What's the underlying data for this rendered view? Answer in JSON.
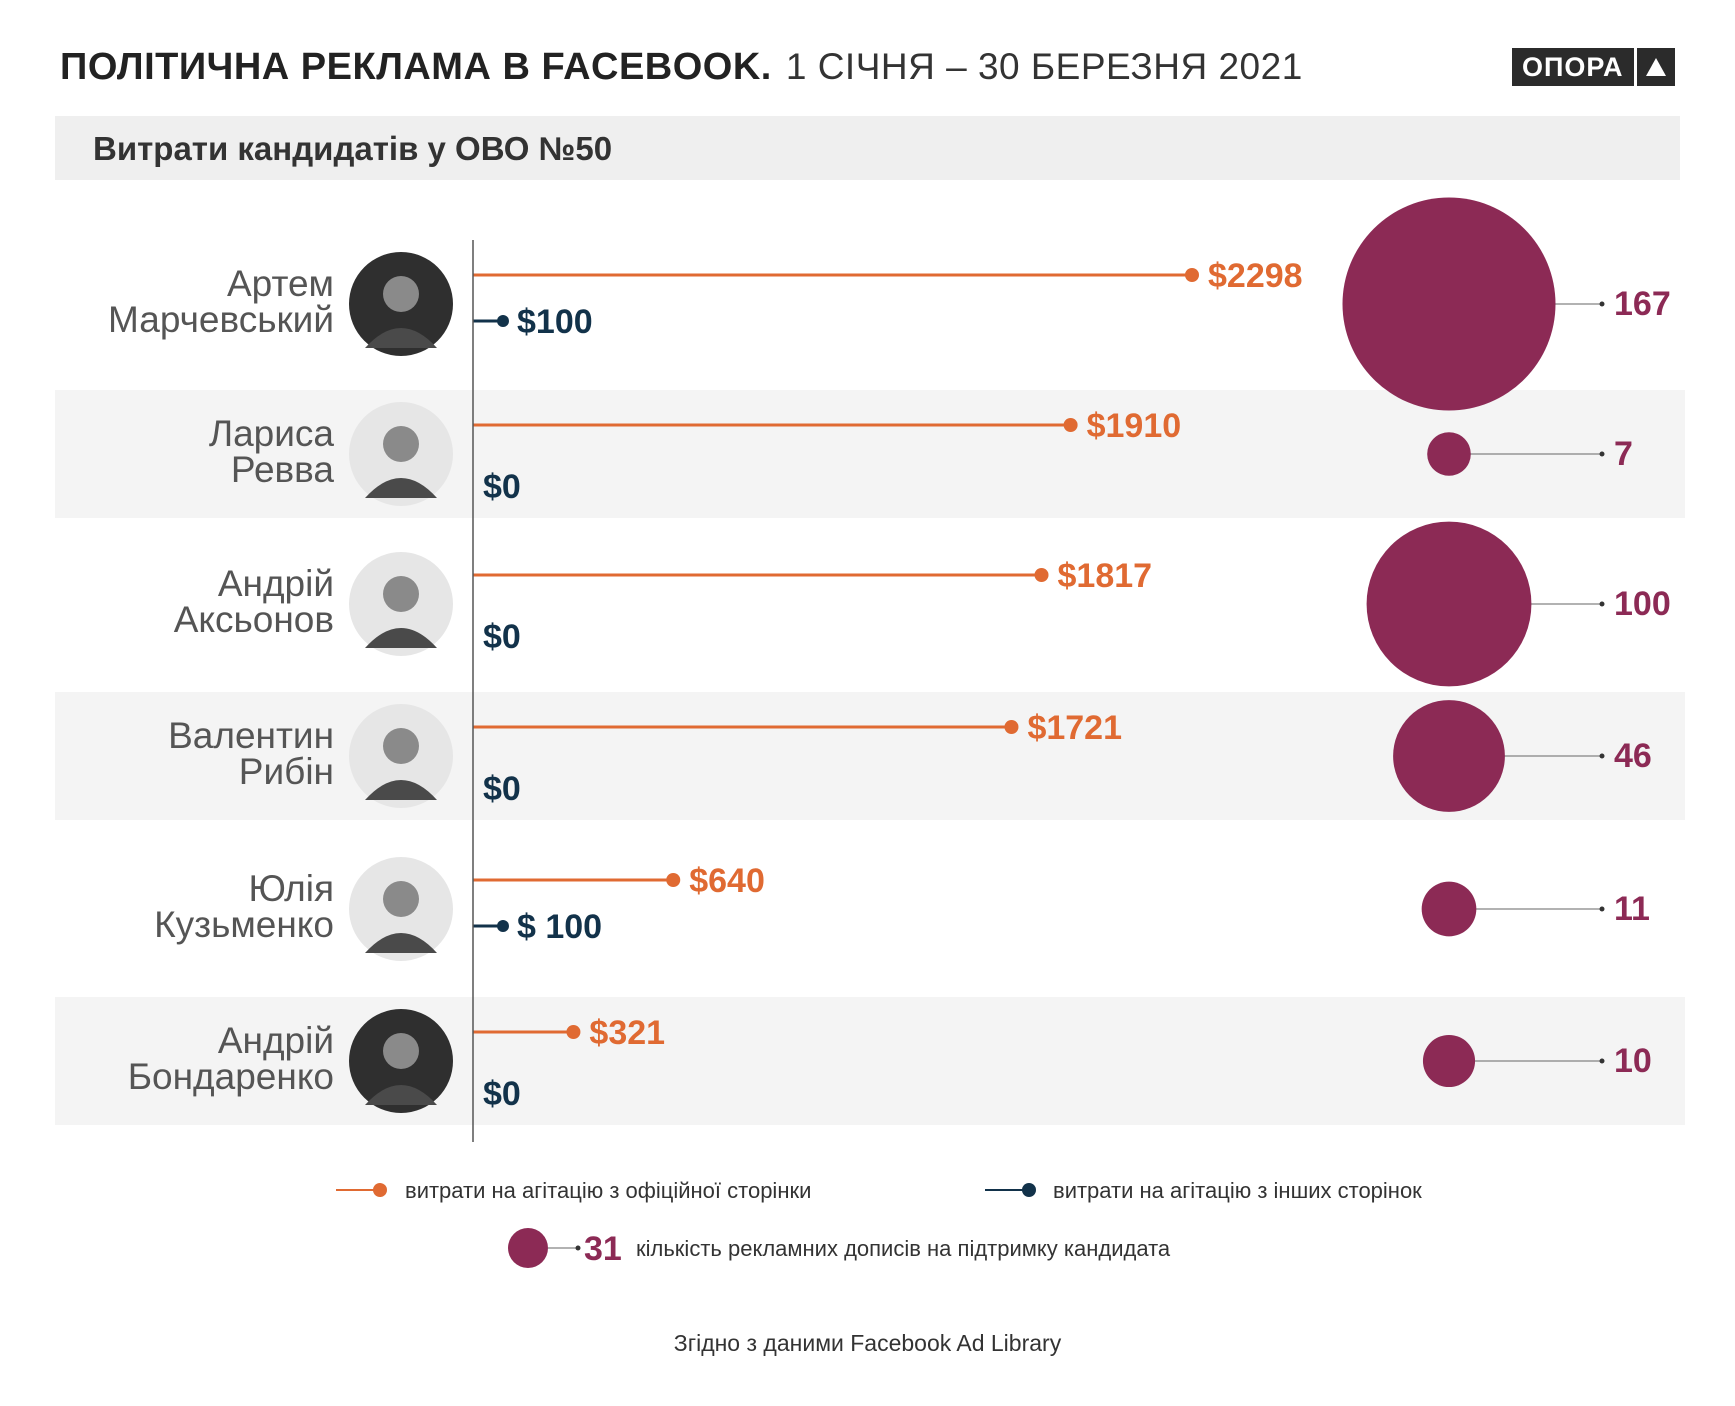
{
  "header": {
    "title_bold": "ПОЛІТИЧНА РЕКЛАМА В FACEBOOK.",
    "title_light": "1 СІЧНЯ – 30 БЕРЕЗНЯ 2021",
    "logo": "ОПОРА"
  },
  "subtitle": "Витрати кандидатів у ОВО №50",
  "footer": "Згідно з даними Facebook Ad Library",
  "colors": {
    "official": "#e06a32",
    "other": "#12324a",
    "bubble": "#8c2a55",
    "row_band": "#f4f4f4"
  },
  "chart_data": {
    "type": "bar",
    "categories": [
      "Артем Марчевський",
      "Лариса Ревва",
      "Андрій Аксьонов",
      "Валентин Рибін",
      "Юлія Кузьменко",
      "Андрій Бондаренко"
    ],
    "series": [
      {
        "name": "витрати на агітацію з офіційної сторінки",
        "values": [
          2298,
          1910,
          1817,
          1721,
          640,
          321
        ],
        "labels": [
          "$2298",
          "$1910",
          "$1817",
          "$1721",
          "$640",
          "$321"
        ]
      },
      {
        "name": "витрати на агітацію з інших сторінок",
        "values": [
          100,
          0,
          0,
          0,
          100,
          0
        ],
        "labels": [
          "$100",
          "$0",
          "$0",
          "$0",
          "$ 100",
          "$0"
        ]
      },
      {
        "name": "кількість рекламних дописів на підтримку кандидата",
        "values": [
          167,
          7,
          100,
          46,
          11,
          10
        ],
        "labels": [
          "167",
          "7",
          "100",
          "46",
          "11",
          "10"
        ]
      }
    ],
    "names": [
      [
        "Артем",
        "Марчевський"
      ],
      [
        "Лариса",
        "Ревва"
      ],
      [
        "Андрій",
        "Аксьонов"
      ],
      [
        "Валентин",
        "Рибін"
      ],
      [
        "Юлія",
        "Кузьменко"
      ],
      [
        "Андрій",
        "Бондаренко"
      ]
    ],
    "legend": {
      "official": "витрати на агітацію з офіційної сторінки",
      "other": "витрати на агітацію з інших сторінок",
      "bubble_example": "31",
      "bubble_text": "кількість рекламних дописів на підтримку кандидата"
    }
  }
}
